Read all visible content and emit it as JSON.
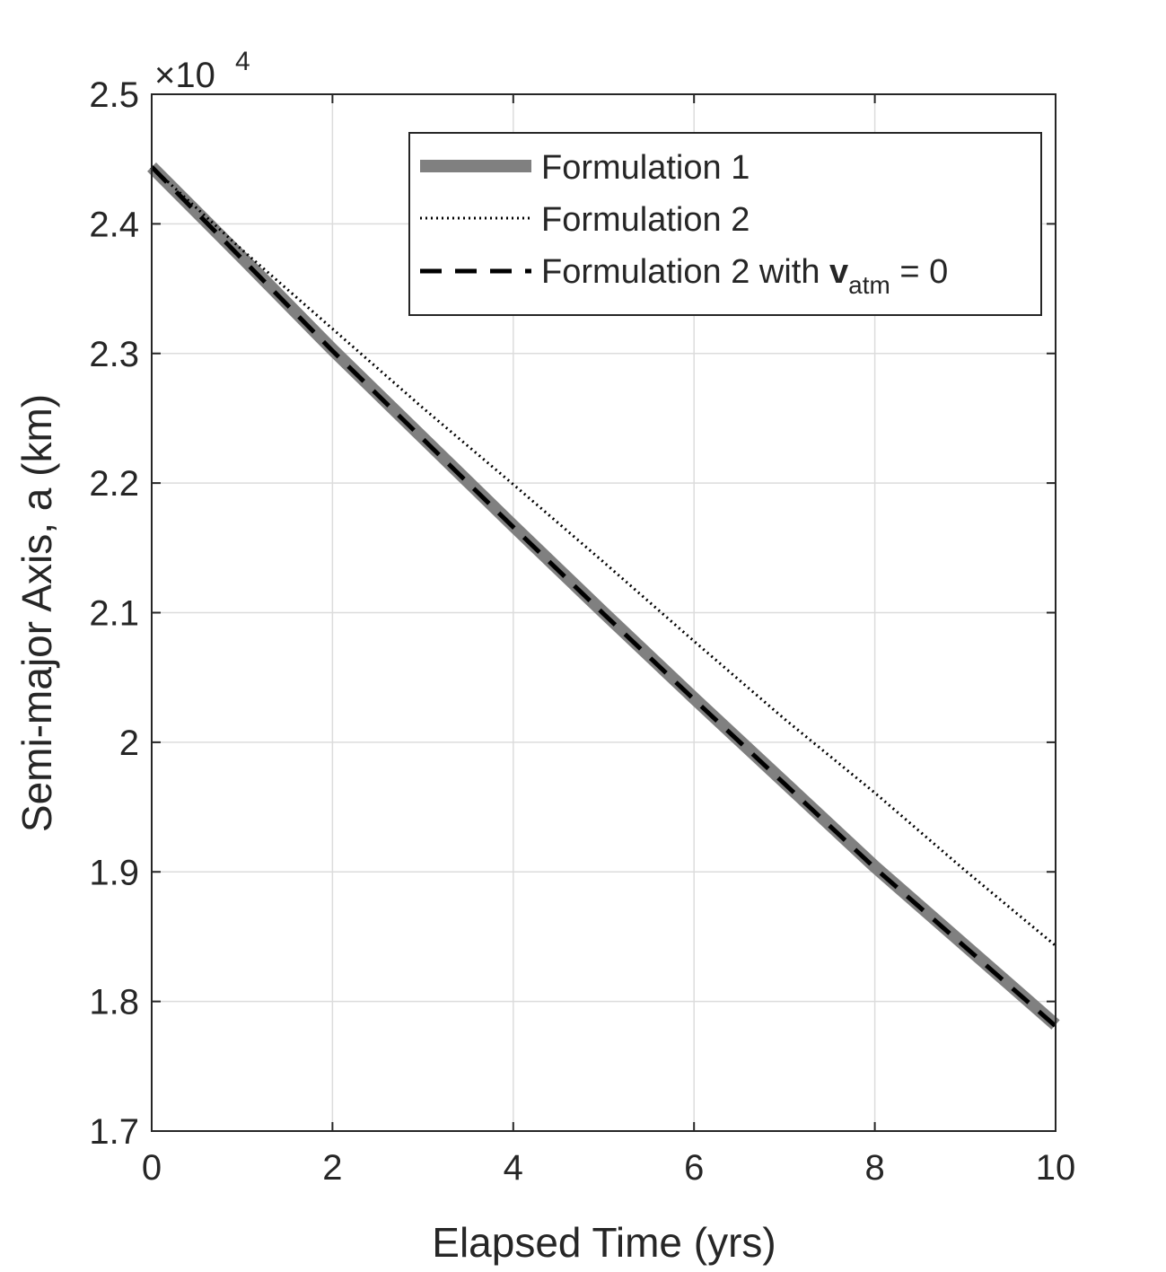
{
  "chart_data": {
    "type": "line",
    "title": "",
    "xlabel": "Elapsed Time (yrs)",
    "ylabel": "Semi-major Axis, a (km)",
    "y_multiplier": {
      "base": "×10",
      "exponent": "4"
    },
    "xlim": [
      0,
      10
    ],
    "ylim": [
      1.7,
      2.5
    ],
    "x_ticks": [
      0,
      2,
      4,
      6,
      8,
      10
    ],
    "y_ticks": [
      1.7,
      1.8,
      1.9,
      2.0,
      2.1,
      2.2,
      2.3,
      2.4,
      2.5
    ],
    "x_tick_labels": [
      "0",
      "2",
      "4",
      "6",
      "8",
      "10"
    ],
    "y_tick_labels": [
      "1.7",
      "1.8",
      "1.9",
      "2",
      "2.1",
      "2.2",
      "2.3",
      "2.4",
      "2.5"
    ],
    "grid": true,
    "legend_position": "top-right",
    "series": [
      {
        "name": "Formulation 1",
        "style": "solid-thick",
        "color": "#808080",
        "x": [
          0,
          1,
          2,
          3,
          4,
          5,
          6,
          7,
          8,
          9,
          10
        ],
        "y": [
          2.444,
          2.374,
          2.303,
          2.235,
          2.167,
          2.1,
          2.034,
          1.969,
          1.904,
          1.843,
          1.782
        ]
      },
      {
        "name": "Formulation 2",
        "style": "dotted",
        "color": "#000000",
        "x": [
          0,
          1,
          2,
          3,
          4,
          5,
          6,
          7,
          8,
          9,
          10
        ],
        "y": [
          2.444,
          2.38,
          2.319,
          2.258,
          2.199,
          2.139,
          2.078,
          2.018,
          1.961,
          1.901,
          1.843
        ]
      },
      {
        "name": "Formulation 2 with v_atm = 0",
        "style": "dashed",
        "color": "#000000",
        "x": [
          0,
          1,
          2,
          3,
          4,
          5,
          6,
          7,
          8,
          9,
          10
        ],
        "y": [
          2.444,
          2.373,
          2.302,
          2.234,
          2.166,
          2.099,
          2.033,
          1.968,
          1.903,
          1.842,
          1.781
        ]
      }
    ],
    "legend": {
      "entries": [
        {
          "text": "Formulation 1"
        },
        {
          "text": "Formulation 2"
        },
        {
          "prefix": "Formulation 2 with ",
          "symbol": "v",
          "subscript": "atm",
          "suffix": " = 0"
        }
      ]
    }
  }
}
